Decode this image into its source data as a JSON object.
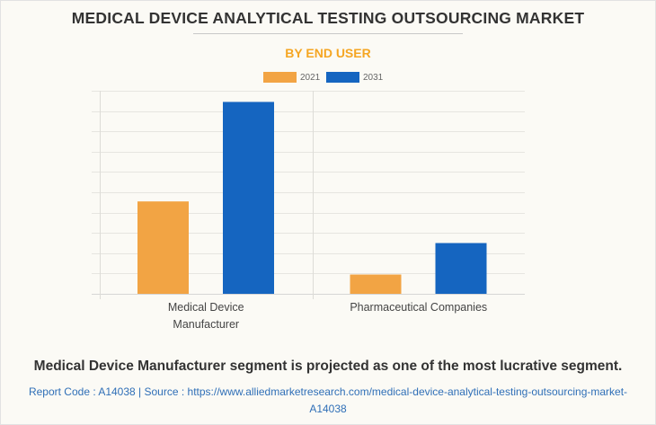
{
  "page": {
    "title": "MEDICAL DEVICE ANALYTICAL TESTING OUTSOURCING MARKET",
    "subtitle": "BY END USER",
    "headline": "Medical Device Manufacturer segment is projected as one of the most lucrative segment.",
    "source_line_1": "Report Code : A14038  |  Source : https://www.alliedmarketresearch.com/medical-device-analytical-testing-outsourcing-market-",
    "source_line_2": "A14038",
    "colors": {
      "title": "#333333",
      "subtitle": "#f5a623",
      "source": "#2f6fb7",
      "background": "#fbfaf5"
    }
  },
  "chart_data": {
    "type": "bar",
    "title": "MEDICAL DEVICE ANALYTICAL TESTING OUTSOURCING MARKET",
    "subtitle": "BY END USER",
    "xlabel": "",
    "ylabel": "",
    "categories": [
      "Medical Device Manufacturer",
      "Pharmaceutical Companies"
    ],
    "category_label_lines": [
      [
        "Medical Device",
        "Manufacturer"
      ],
      [
        "Pharmaceutical Companies"
      ]
    ],
    "series": [
      {
        "name": "2021",
        "color": "#f2a444",
        "values": [
          4.55,
          0.95
        ]
      },
      {
        "name": "2031",
        "color": "#1565c0",
        "values": [
          9.45,
          2.5
        ]
      }
    ],
    "ylim": [
      0,
      10
    ],
    "y_gridlines": 10,
    "y_tick_labels_shown": false,
    "grid": true,
    "legend": "top-center",
    "value_units": "relative (no axis labels shown; estimated in gridline units)"
  }
}
